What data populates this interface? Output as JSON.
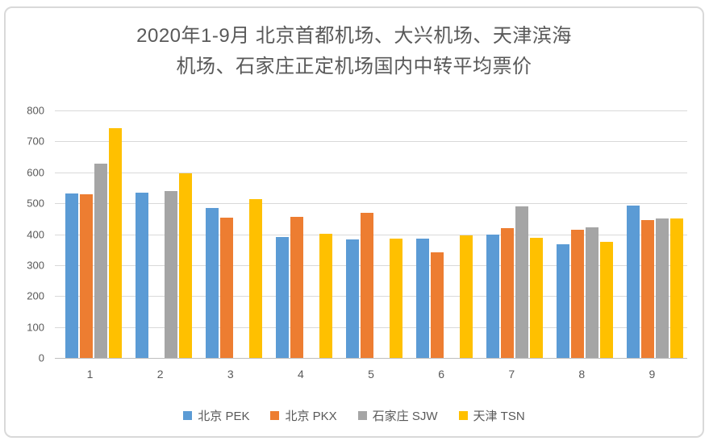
{
  "title_lines": [
    "2020年1-9月 北京首都机场、大兴机场、天津滨海",
    "机场、石家庄正定机场国内中转平均票价"
  ],
  "colors": {
    "text": "#595959",
    "gridline": "#D9D9D9",
    "axis_line": "#BFBFBF",
    "card_border": "#D9D9D9",
    "background": "#FFFFFF",
    "series_blue": "#5B9BD5",
    "series_orange": "#ED7D31",
    "series_gray": "#A5A5A5",
    "series_yellow": "#FFC000"
  },
  "chart_data": {
    "type": "bar",
    "title": "2020年1-9月 北京首都机场、大兴机场、天津滨海机场、石家庄正定机场国内中转平均票价",
    "xlabel": "",
    "ylabel": "",
    "categories": [
      "1",
      "2",
      "3",
      "4",
      "5",
      "6",
      "7",
      "8",
      "9"
    ],
    "series": [
      {
        "name": "北京 PEK",
        "key": "pek",
        "color": "#5B9BD5",
        "values": [
          531,
          535,
          486,
          392,
          383,
          386,
          400,
          368,
          492
        ]
      },
      {
        "name": "北京 PKX",
        "key": "pkx",
        "color": "#ED7D31",
        "values": [
          528,
          null,
          453,
          457,
          468,
          342,
          420,
          415,
          445
        ]
      },
      {
        "name": "石家庄 SJW",
        "key": "sjw",
        "color": "#A5A5A5",
        "values": [
          629,
          540,
          null,
          null,
          null,
          null,
          489,
          421,
          450
        ]
      },
      {
        "name": "天津 TSN",
        "key": "tsn",
        "color": "#FFC000",
        "values": [
          744,
          596,
          514,
          401,
          386,
          396,
          388,
          375,
          450
        ]
      }
    ],
    "ylim": [
      0,
      800
    ],
    "ytick_step": 100,
    "grid": true,
    "legend_position": "bottom"
  }
}
